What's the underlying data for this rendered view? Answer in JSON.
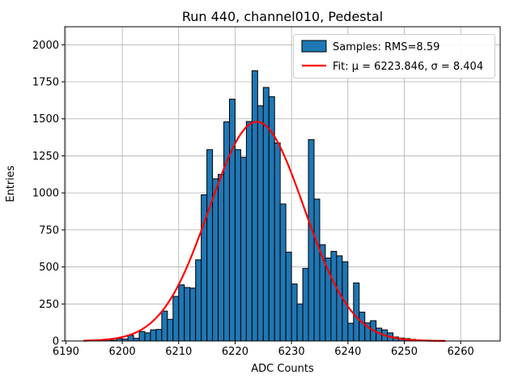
{
  "chart_data": {
    "type": "bar",
    "title": "Run 440, channel010, Pedestal",
    "xlabel": "ADC Counts",
    "ylabel": "Entries",
    "grid": true,
    "legend_position": "upper right",
    "legend": [
      "Samples: RMS=8.59",
      "Fit: μ = 6223.846, σ = 8.404"
    ],
    "rms": 8.59,
    "fit": {
      "mu": 6223.846,
      "sigma": 8.404,
      "amplitude": 1480,
      "curve_x_range": [
        6193.2,
        6257.4
      ]
    },
    "bin_start": 6197,
    "bin_width": 1,
    "values": [
      11,
      5,
      16,
      13,
      38,
      18,
      64,
      55,
      75,
      78,
      202,
      146,
      301,
      379,
      361,
      357,
      548,
      987,
      1292,
      1095,
      1125,
      1480,
      1633,
      1292,
      1240,
      1482,
      1825,
      1588,
      1712,
      1650,
      1337,
      925,
      600,
      385,
      250,
      490,
      1360,
      958,
      650,
      560,
      605,
      575,
      535,
      120,
      392,
      195,
      122,
      137,
      87,
      75,
      55,
      27,
      20,
      16,
      11,
      7
    ],
    "xlim": [
      6189.8,
      6267.0
    ],
    "ylim": [
      0,
      2122
    ],
    "xticks": [
      6190,
      6200,
      6210,
      6220,
      6230,
      6240,
      6250,
      6260
    ],
    "yticks": [
      0,
      250,
      500,
      750,
      1000,
      1250,
      1500,
      1750,
      2000
    ],
    "colors": {
      "bar_fill": "#1f77b4",
      "bar_edge": "#000000",
      "fit_line": "#ff0000",
      "grid": "#b0b0b0",
      "spine": "#000000",
      "legend_edge": "#cccccc"
    }
  }
}
